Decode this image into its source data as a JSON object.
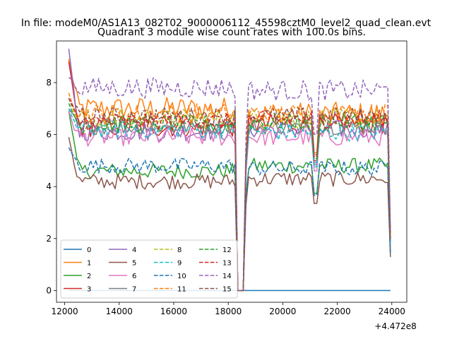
{
  "chart_data": {
    "type": "line",
    "suptitle": "In file: modeM0/AS1A13_082T02_9000006112_45598cztM0_level2_quad_clean.evt",
    "title": "Quadrant 3 module wise count rates with 100.0s bins.",
    "xlabel": "",
    "ylabel": "",
    "x_offset_label": "+4.472e8",
    "xlim": [
      11700,
      24550
    ],
    "ylim": [
      -0.45,
      9.6
    ],
    "x_ticks": [
      12000,
      14000,
      16000,
      18000,
      20000,
      22000,
      24000
    ],
    "x_tick_labels": [
      "12000",
      "14000",
      "16000",
      "18000",
      "20000",
      "22000",
      "24000"
    ],
    "y_ticks": [
      0,
      2,
      4,
      6,
      8
    ],
    "y_tick_labels": [
      "0",
      "2",
      "4",
      "6",
      "8"
    ],
    "grid": false,
    "legend": {
      "location": "lower-left",
      "columns": 4
    },
    "x_range": [
      12150,
      23950
    ],
    "bin_seconds": 100,
    "gap": {
      "drop_start": 18250,
      "zero_from": 18350,
      "zero_to": 18550,
      "recover_end": 18700
    },
    "series": [
      {
        "name": "0",
        "color": "#1f77b4",
        "dash": "solid",
        "pre_level": 0.0,
        "post_level": 0.0,
        "start": 0.0,
        "noise": 0
      },
      {
        "name": "1",
        "color": "#ff7f0e",
        "dash": "solid",
        "pre_level": 7.0,
        "post_level": 6.8,
        "start": 8.9,
        "noise": 0.45
      },
      {
        "name": "2",
        "color": "#2ca02c",
        "dash": "solid",
        "pre_level": 4.6,
        "post_level": 4.8,
        "start": 6.9,
        "noise": 0.3
      },
      {
        "name": "3",
        "color": "#d62728",
        "dash": "solid",
        "pre_level": 6.3,
        "post_level": 6.4,
        "start": 8.8,
        "noise": 0.4
      },
      {
        "name": "4",
        "color": "#9467bd",
        "dash": "solid",
        "pre_level": 6.1,
        "post_level": 6.2,
        "start": 9.3,
        "noise": 0.35
      },
      {
        "name": "5",
        "color": "#8c564b",
        "dash": "solid",
        "pre_level": 4.2,
        "post_level": 4.3,
        "start": 5.9,
        "noise": 0.3
      },
      {
        "name": "6",
        "color": "#e377c2",
        "dash": "solid",
        "pre_level": 5.9,
        "post_level": 5.9,
        "start": 6.9,
        "noise": 0.35
      },
      {
        "name": "7",
        "color": "#7f7f7f",
        "dash": "solid",
        "pre_level": 6.3,
        "post_level": 6.3,
        "start": 7.0,
        "noise": 0.3
      },
      {
        "name": "8",
        "color": "#bcbd22",
        "dash": "dashed",
        "pre_level": 6.6,
        "post_level": 6.6,
        "start": 7.4,
        "noise": 0.4
      },
      {
        "name": "9",
        "color": "#17becf",
        "dash": "dashed",
        "pre_level": 6.2,
        "post_level": 6.1,
        "start": 7.0,
        "noise": 0.35
      },
      {
        "name": "10",
        "color": "#1f77b4",
        "dash": "dashed",
        "pre_level": 4.8,
        "post_level": 4.7,
        "start": 5.5,
        "noise": 0.3
      },
      {
        "name": "11",
        "color": "#ff7f0e",
        "dash": "dashed",
        "pre_level": 6.8,
        "post_level": 6.8,
        "start": 7.6,
        "noise": 0.4
      },
      {
        "name": "12",
        "color": "#2ca02c",
        "dash": "dashed",
        "pre_level": 6.4,
        "post_level": 6.5,
        "start": 7.2,
        "noise": 0.35
      },
      {
        "name": "13",
        "color": "#d62728",
        "dash": "dashed",
        "pre_level": 6.5,
        "post_level": 6.6,
        "start": 7.4,
        "noise": 0.35
      },
      {
        "name": "14",
        "color": "#9467bd",
        "dash": "dashed",
        "pre_level": 7.8,
        "post_level": 7.7,
        "start": 8.2,
        "noise": 0.4
      },
      {
        "name": "15",
        "color": "#8c564b",
        "dash": "dashed",
        "pre_level": 6.7,
        "post_level": 6.7,
        "start": 7.4,
        "noise": 0.35
      }
    ]
  }
}
